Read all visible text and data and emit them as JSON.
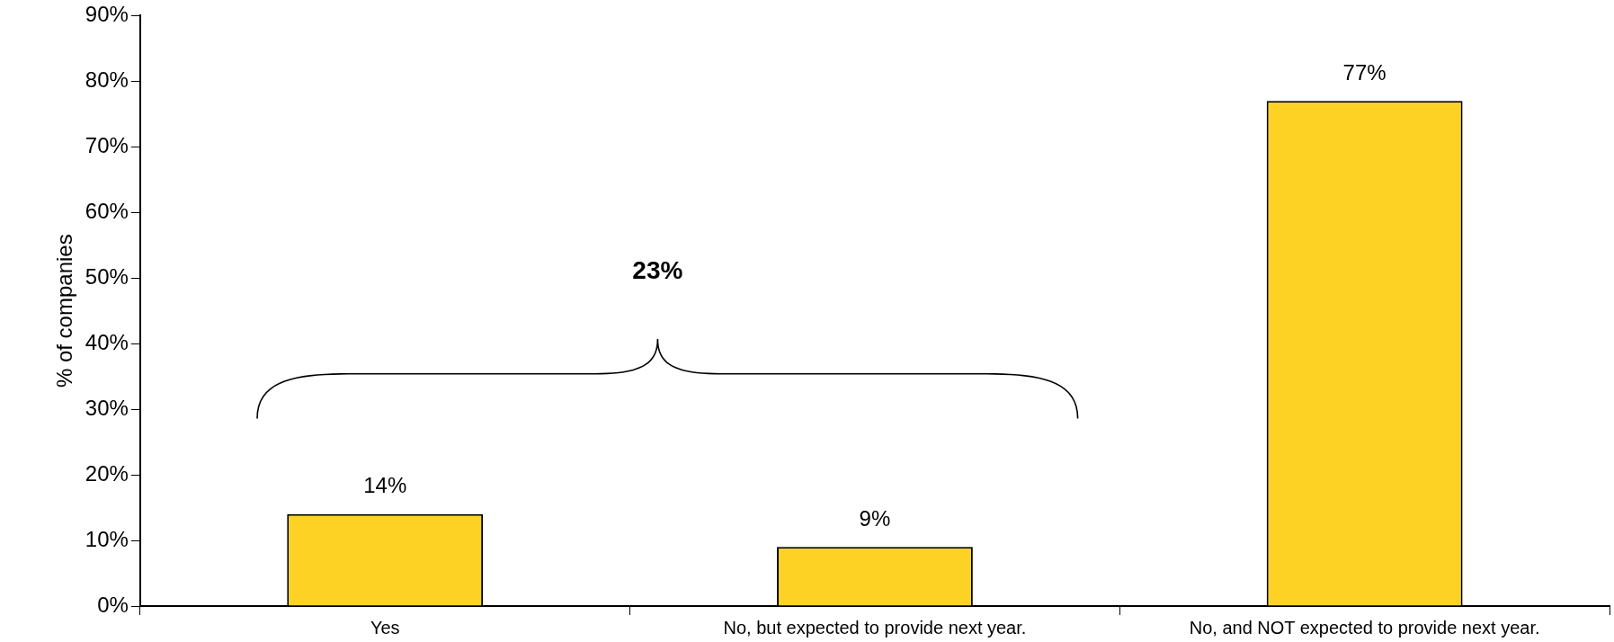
{
  "chart_data": {
    "type": "bar",
    "ylabel": "% of companies",
    "categories": [
      "Yes",
      "No, but expected to provide next year.",
      "No, and NOT expected to provide next year."
    ],
    "values": [
      14,
      9,
      77
    ],
    "color": "#fdd225",
    "data_labels": true,
    "value_labels": [
      "14%",
      "9%",
      "77%"
    ],
    "ylim": [
      0,
      90
    ],
    "yticks": [
      {
        "value": 0,
        "label": "0%"
      },
      {
        "value": 10,
        "label": "10%"
      },
      {
        "value": 20,
        "label": "20%"
      },
      {
        "value": 30,
        "label": "30%"
      },
      {
        "value": 40,
        "label": "40%"
      },
      {
        "value": 50,
        "label": "50%"
      },
      {
        "value": 60,
        "label": "60%"
      },
      {
        "value": 70,
        "label": "70%"
      },
      {
        "value": 80,
        "label": "80%"
      },
      {
        "value": 90,
        "label": "90%"
      }
    ],
    "annotations": [
      "23%"
    ],
    "grid": false,
    "legend": false
  }
}
